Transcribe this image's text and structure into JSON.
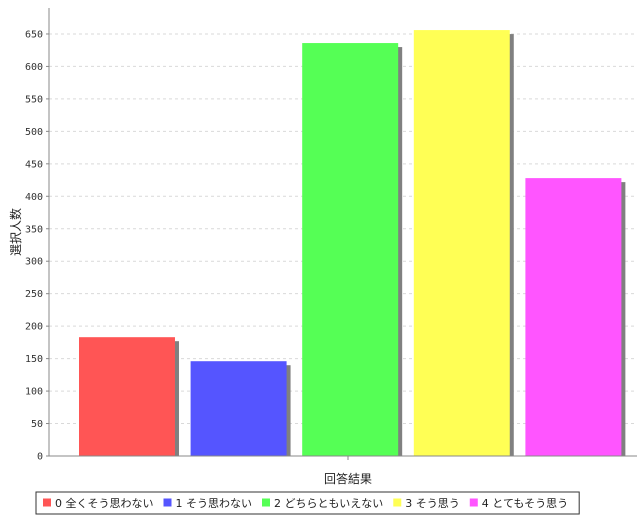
{
  "chart_data": {
    "type": "bar",
    "title": "",
    "xlabel": "回答結果",
    "ylabel": "選択人数",
    "ylim": [
      0,
      690
    ],
    "yticks": [
      0,
      50,
      100,
      150,
      200,
      250,
      300,
      350,
      400,
      450,
      500,
      550,
      600,
      650
    ],
    "grid": true,
    "legend_position": "bottom",
    "categories": [
      "0 全くそう思わない",
      "1 そう思わない",
      "2 どちらともいえない",
      "3 そう思う",
      "4 とてもそう思う"
    ],
    "values": [
      183,
      146,
      636,
      656,
      428
    ],
    "colors": [
      "#ff5555",
      "#5555ff",
      "#55ff55",
      "#ffff55",
      "#ff55ff"
    ],
    "shadow_color": "#808080"
  }
}
